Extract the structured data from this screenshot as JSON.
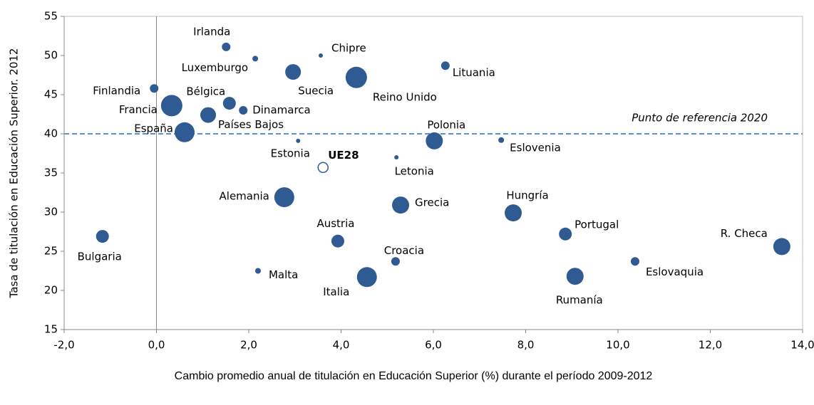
{
  "chart_data": {
    "type": "bubble",
    "x_label": "Cambio promedio anual de titulación en Educación Superior (%) durante el período 2009-2012",
    "y_label": "Tasa de titulación en Educación Superior. 2012",
    "color": "#2f5b92",
    "xlim": [
      -2,
      14
    ],
    "xticks": [
      {
        "value": -2,
        "label": "-2,0"
      },
      {
        "value": 0,
        "label": "0,0"
      },
      {
        "value": 2,
        "label": "2,0"
      },
      {
        "value": 4,
        "label": "4,0"
      },
      {
        "value": 6,
        "label": "6,0"
      },
      {
        "value": 8,
        "label": "8,0"
      },
      {
        "value": 10,
        "label": "10,0"
      },
      {
        "value": 12,
        "label": "12,0"
      },
      {
        "value": 14,
        "label": "14,0"
      }
    ],
    "ylim": [
      15,
      55
    ],
    "yticks": [
      15,
      20,
      25,
      30,
      35,
      40,
      45,
      50,
      55
    ],
    "vline": 0,
    "hline": {
      "value": 40,
      "label": "Punto de referencia 2020",
      "color": "#5b8fd6"
    },
    "points": [
      {
        "label": "Irlanda",
        "x": 1.51,
        "y": 51.1,
        "size": 6
      },
      {
        "label": "Luxemburgo",
        "x": 2.14,
        "y": 49.6,
        "size": 4
      },
      {
        "label": "Chipre",
        "x": 3.56,
        "y": 50.0,
        "size": 3
      },
      {
        "label": "Lituania",
        "x": 6.26,
        "y": 48.7,
        "size": 6
      },
      {
        "label": "Suecia",
        "x": 2.96,
        "y": 47.9,
        "size": 11
      },
      {
        "label": "Reino Unido",
        "x": 4.33,
        "y": 47.2,
        "size": 15
      },
      {
        "label": "Finlandia",
        "x": -0.05,
        "y": 45.8,
        "size": 6
      },
      {
        "label": "Bélgica",
        "x": 1.58,
        "y": 43.9,
        "size": 9
      },
      {
        "label": "Francia",
        "x": 0.33,
        "y": 43.6,
        "size": 15
      },
      {
        "label": "Dinamarca",
        "x": 1.88,
        "y": 43.0,
        "size": 6
      },
      {
        "label": "Países Bajos",
        "x": 1.12,
        "y": 42.4,
        "size": 11
      },
      {
        "label": "España",
        "x": 0.61,
        "y": 40.2,
        "size": 14
      },
      {
        "label": "Estonia",
        "x": 3.07,
        "y": 39.1,
        "size": 3
      },
      {
        "label": "Polonia",
        "x": 6.02,
        "y": 39.1,
        "size": 12
      },
      {
        "label": "Eslovenia",
        "x": 7.47,
        "y": 39.2,
        "size": 4
      },
      {
        "label": "Letonia",
        "x": 5.2,
        "y": 37.0,
        "size": 3
      },
      {
        "label": "Alemania",
        "x": 2.77,
        "y": 31.9,
        "size": 14
      },
      {
        "label": "Grecia",
        "x": 5.29,
        "y": 30.9,
        "size": 12
      },
      {
        "label": "Hungría",
        "x": 7.73,
        "y": 29.9,
        "size": 12
      },
      {
        "label": "Portugal",
        "x": 8.86,
        "y": 27.2,
        "size": 9
      },
      {
        "label": "R. Checa",
        "x": 13.55,
        "y": 25.6,
        "size": 12
      },
      {
        "label": "Bulgaria",
        "x": -1.17,
        "y": 26.9,
        "size": 9
      },
      {
        "label": "Austria",
        "x": 3.93,
        "y": 26.3,
        "size": 9
      },
      {
        "label": "Croacia",
        "x": 5.18,
        "y": 23.7,
        "size": 6
      },
      {
        "label": "Eslovaquia",
        "x": 10.37,
        "y": 23.7,
        "size": 6
      },
      {
        "label": "Malta",
        "x": 2.2,
        "y": 22.5,
        "size": 4
      },
      {
        "label": "Italia",
        "x": 4.56,
        "y": 21.7,
        "size": 14
      },
      {
        "label": "Rumanía",
        "x": 9.07,
        "y": 21.8,
        "size": 12
      }
    ],
    "highlight": {
      "label": "UE28",
      "x": 3.61,
      "y": 35.7,
      "size": 7
    }
  }
}
